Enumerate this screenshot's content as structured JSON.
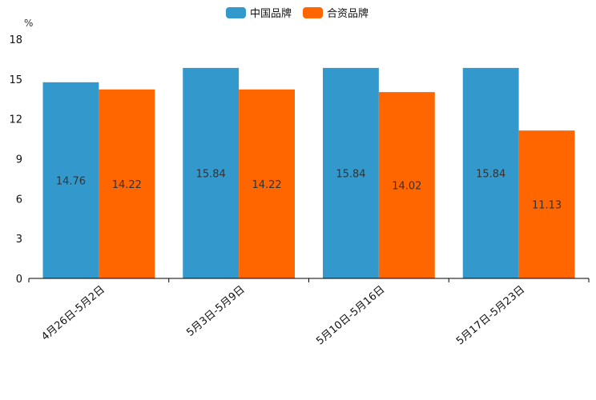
{
  "chart_data": {
    "type": "bar",
    "unit_label": "%",
    "categories": [
      "4月26日-5月2日",
      "5月3日-5月9日",
      "5月10日-5月16日",
      "5月17日-5月23日"
    ],
    "series": [
      {
        "name": "中国品牌",
        "values": [
          14.76,
          15.84,
          15.84,
          15.84
        ],
        "color": "#3399cc"
      },
      {
        "name": "合资品牌",
        "values": [
          14.22,
          14.22,
          14.02,
          11.13
        ],
        "color": "#ff6600"
      }
    ],
    "ylim": [
      0,
      18
    ],
    "yticks": [
      0,
      3,
      6,
      9,
      12,
      15,
      18
    ],
    "legend_position": "top-center",
    "grid": false
  }
}
